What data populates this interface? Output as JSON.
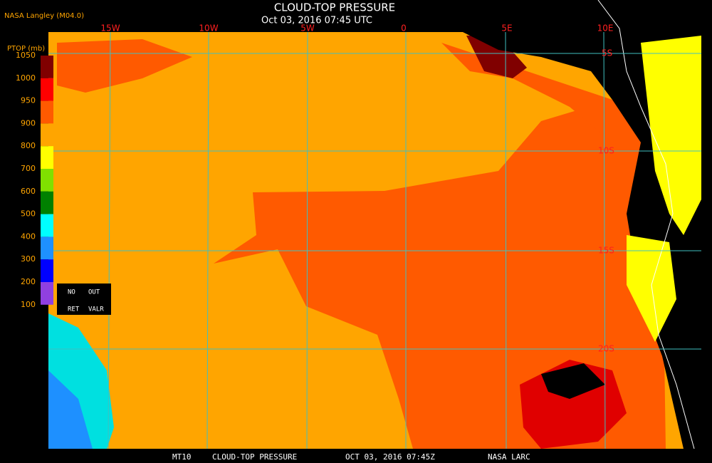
{
  "header": {
    "title": "CLOUD-TOP PRESSURE",
    "subtitle": "Oct 03, 2016 07:45 UTC",
    "source": "NASA Langley (M04.0)"
  },
  "colorbar": {
    "label": "PTOP (mb)",
    "ticks": [
      "1050",
      "1000",
      "950",
      "900",
      "800",
      "700",
      "600",
      "500",
      "400",
      "300",
      "200",
      "100"
    ]
  },
  "legend": {
    "items": [
      "NO",
      "OUT",
      "RET",
      "VALR"
    ]
  },
  "grid": {
    "longitudes": [
      "15W",
      "10W",
      "5W",
      "0",
      "5E",
      "10E"
    ],
    "latitudes": [
      "5S",
      "10S",
      "15S",
      "20S"
    ]
  },
  "footer": {
    "parts": [
      "MT10",
      "CLOUD-TOP PRESSURE",
      "OCT 03, 2016 07:45Z",
      "NASA LARC"
    ]
  }
}
